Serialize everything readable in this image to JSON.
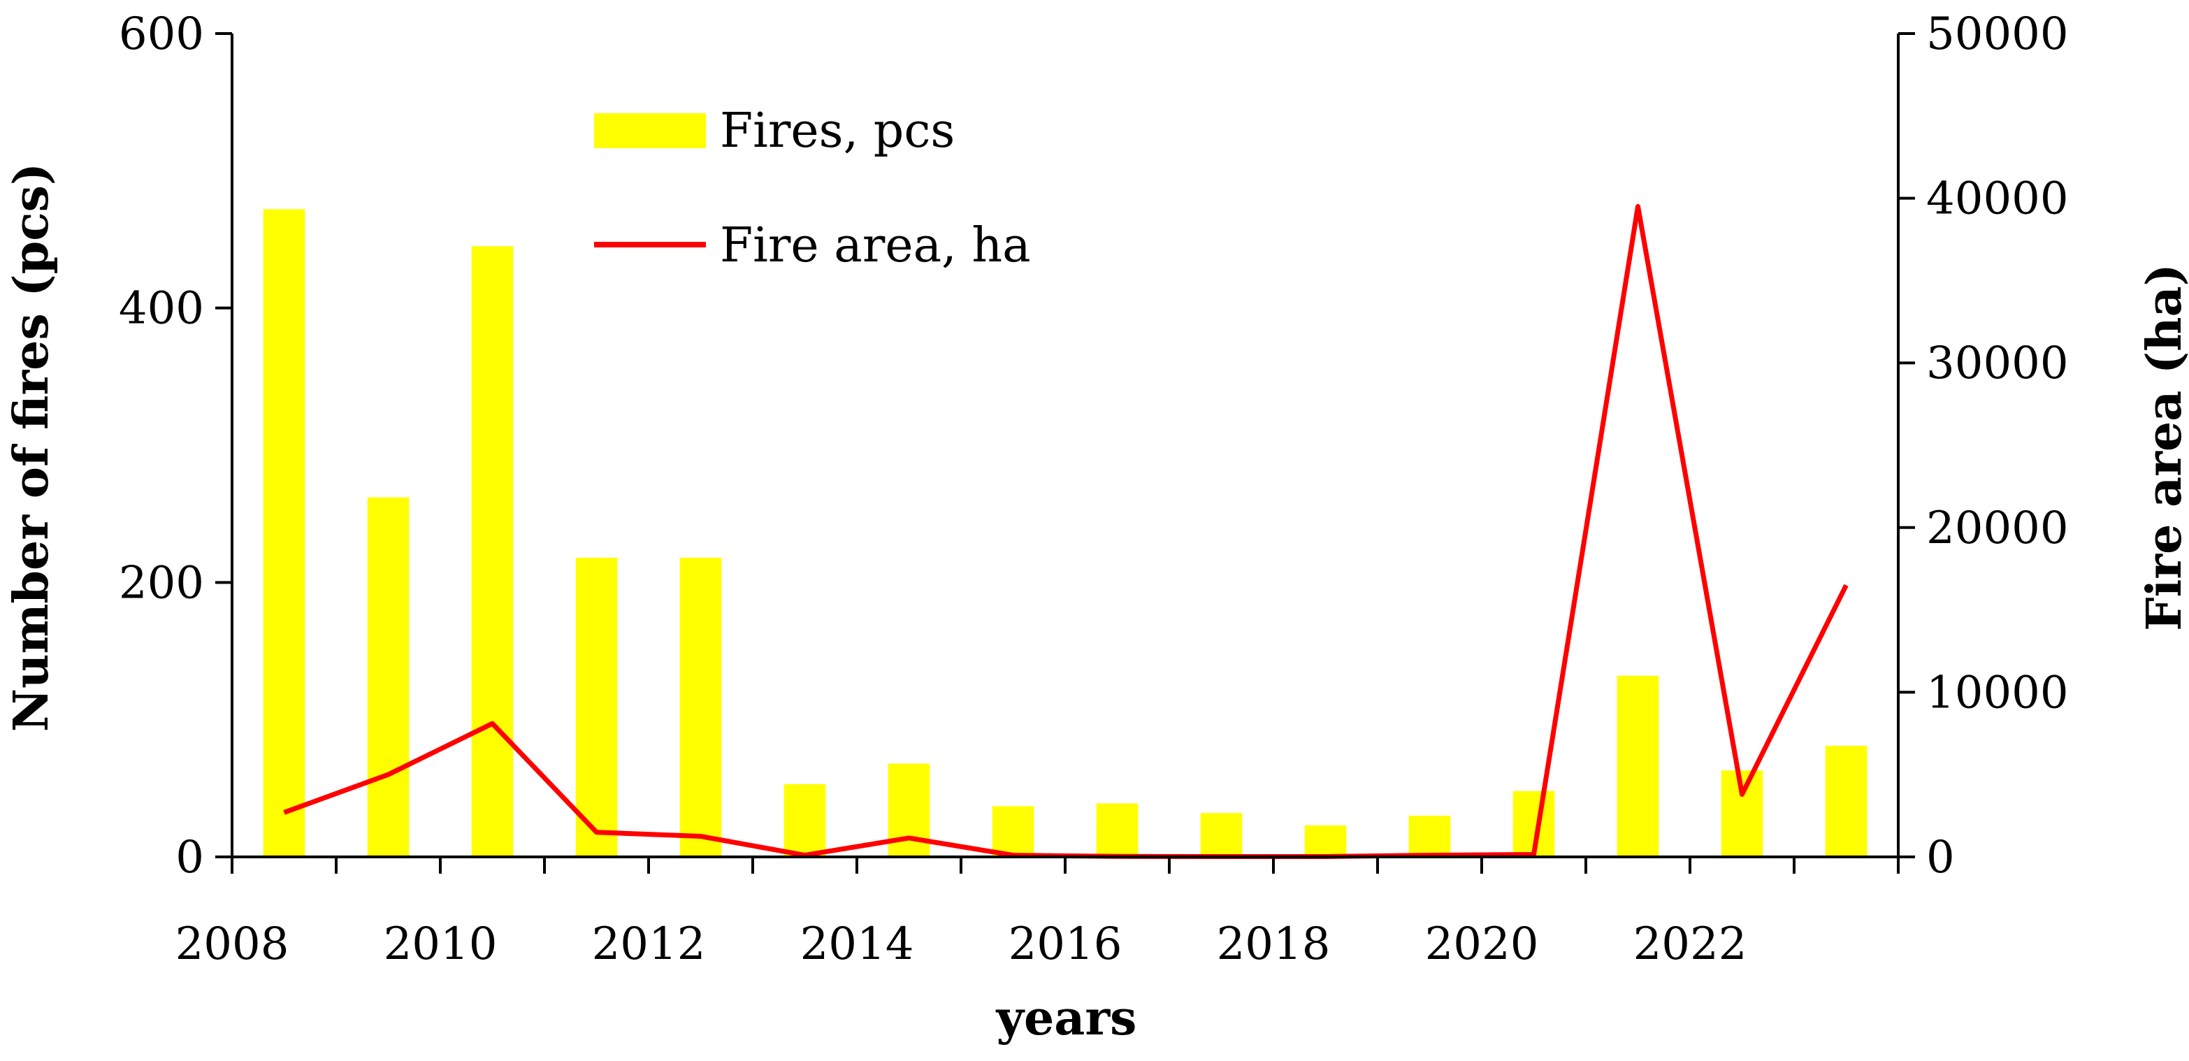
{
  "chart_data": {
    "type": "bar",
    "title": "",
    "xlabel": "years",
    "ylabel": "Number of fires (pcs)",
    "y2label": "Fire area (ha)",
    "ylim": [
      0,
      600
    ],
    "y2lim": [
      0,
      50000
    ],
    "yticks": [
      "0",
      "200",
      "400",
      "600"
    ],
    "y2ticks": [
      "0",
      "10000",
      "20000",
      "30000",
      "40000",
      "50000"
    ],
    "xtick_labels": [
      "2008",
      "2010",
      "2012",
      "2014",
      "2016",
      "2018",
      "2020",
      "2022"
    ],
    "categories": [
      2008,
      2009,
      2010,
      2011,
      2012,
      2013,
      2014,
      2015,
      2016,
      2017,
      2018,
      2019,
      2020,
      2021,
      2022,
      2023
    ],
    "grid": false,
    "legend_position": "top-center",
    "series": [
      {
        "name": "Fires, pcs",
        "type": "bar",
        "axis": "left",
        "color": "#ffff00",
        "values": [
          472,
          262,
          445,
          218,
          218,
          53,
          68,
          37,
          39,
          32,
          23,
          30,
          48,
          132,
          63,
          81
        ]
      },
      {
        "name": "Fire area, ha",
        "type": "line",
        "axis": "right",
        "color": "#ff0000",
        "values": [
          2700,
          5000,
          8100,
          1500,
          1250,
          100,
          1150,
          100,
          30,
          20,
          20,
          100,
          150,
          39500,
          3800,
          16500
        ]
      }
    ]
  }
}
